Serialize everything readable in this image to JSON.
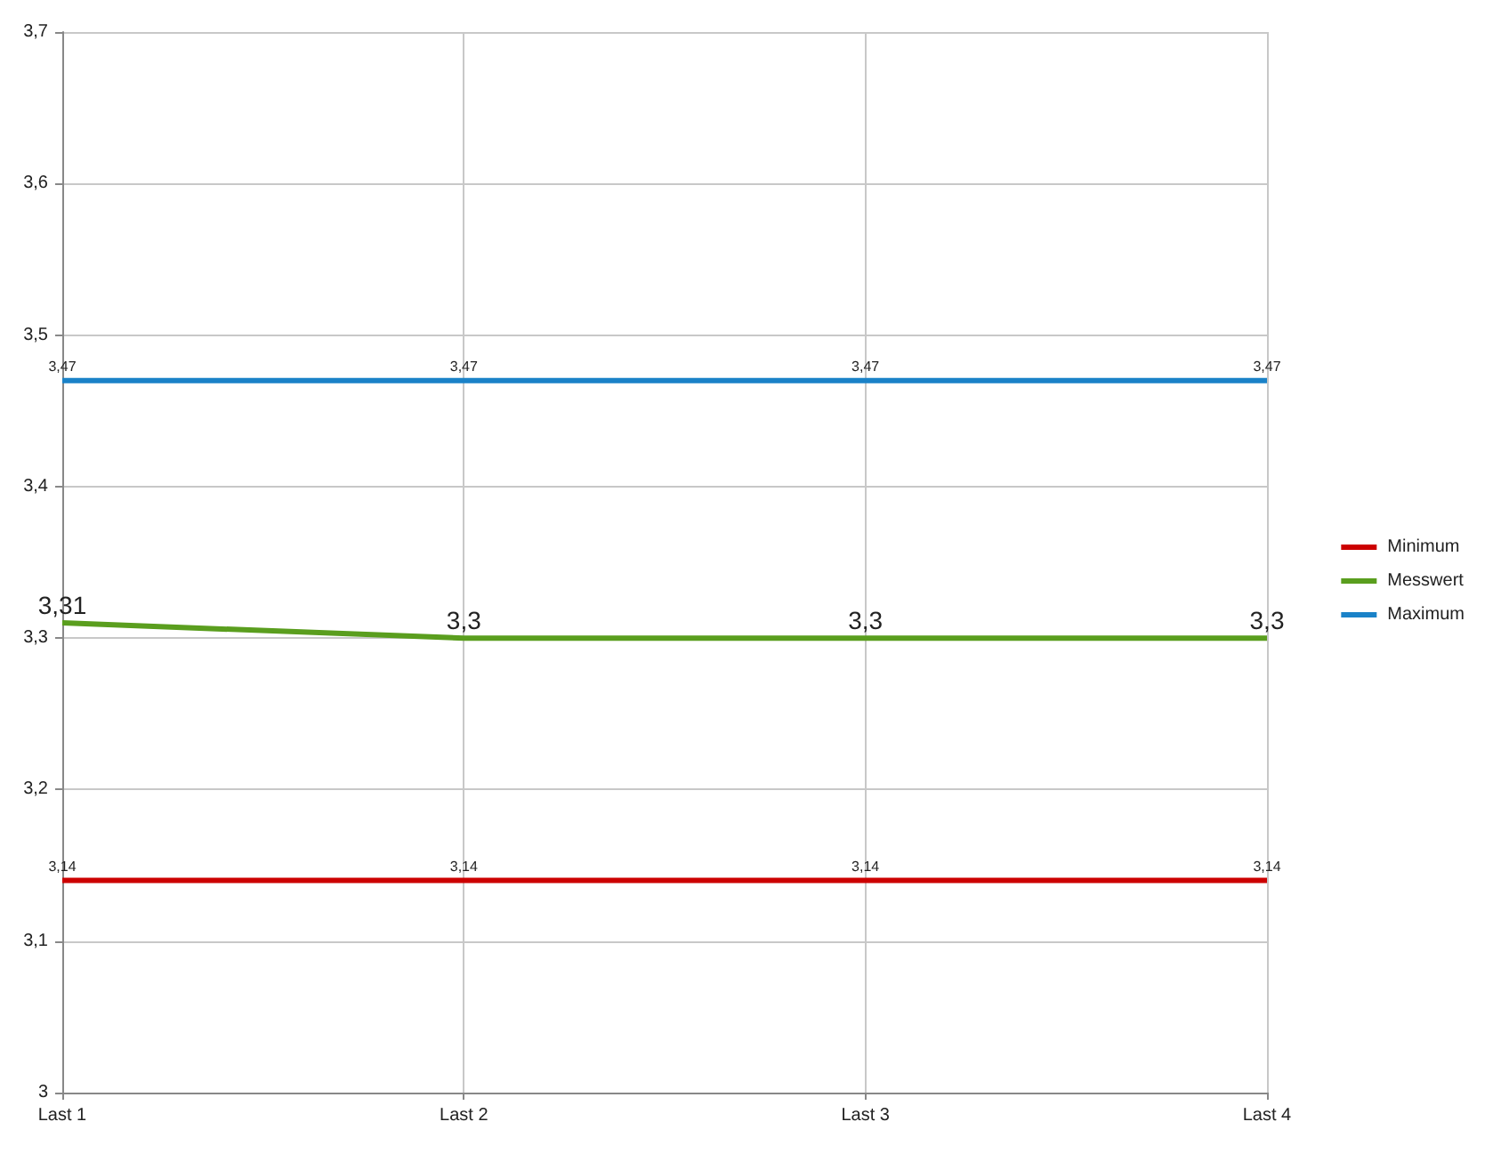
{
  "chart_data": {
    "type": "line",
    "categories": [
      "Last 1",
      "Last 2",
      "Last 3",
      "Last 4"
    ],
    "series": [
      {
        "name": "Minimum",
        "color": "#cc0000",
        "values": [
          3.14,
          3.14,
          3.14,
          3.14
        ],
        "value_labels": [
          "3,14",
          "3,14",
          "3,14",
          "3,14"
        ]
      },
      {
        "name": "Messwert",
        "color": "#5a9e1e",
        "values": [
          3.31,
          3.3,
          3.3,
          3.3
        ],
        "value_labels": [
          "3,31",
          "3,3",
          "3,3",
          "3,3"
        ]
      },
      {
        "name": "Maximum",
        "color": "#1a82c8",
        "values": [
          3.47,
          3.47,
          3.47,
          3.47
        ],
        "value_labels": [
          "3,47",
          "3,47",
          "3,47",
          "3,47"
        ]
      }
    ],
    "ylim": [
      3,
      3.7
    ],
    "yticks": [
      {
        "value": 3,
        "label": "3"
      },
      {
        "value": 3.1,
        "label": "3,1"
      },
      {
        "value": 3.2,
        "label": "3,2"
      },
      {
        "value": 3.3,
        "label": "3,3"
      },
      {
        "value": 3.4,
        "label": "3,4"
      },
      {
        "value": 3.5,
        "label": "3,5"
      },
      {
        "value": 3.6,
        "label": "3,6"
      },
      {
        "value": 3.7,
        "label": "3,7"
      }
    ],
    "grid": true,
    "legend": "right",
    "marker": "none",
    "line_style": "solid"
  }
}
